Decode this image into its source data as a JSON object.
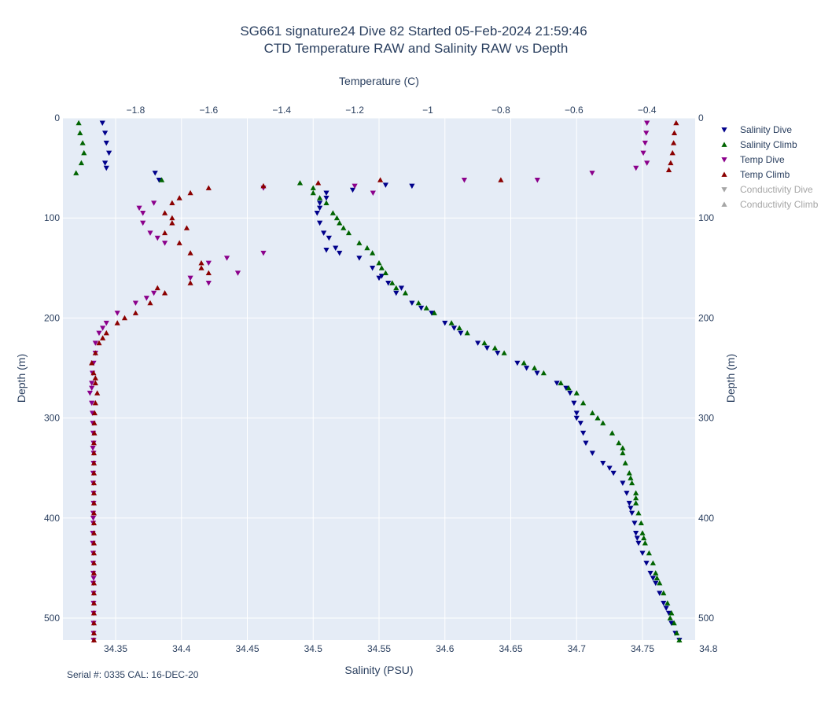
{
  "chart_data": {
    "type": "scatter",
    "title": "SG661 signature24 Dive 82 Started 05-Feb-2024 21:59:46",
    "subtitle": "CTD Temperature RAW and Salinity RAW vs Depth",
    "x_bottom": {
      "label": "Salinity (PSU)",
      "range": [
        34.31,
        34.79
      ],
      "ticks": [
        34.35,
        34.4,
        34.45,
        34.5,
        34.55,
        34.6,
        34.65,
        34.7,
        34.75,
        34.8
      ]
    },
    "x_top": {
      "label": "Temperature (C)",
      "range": [
        -1.999,
        -0.268
      ],
      "ticks": [
        -1.8,
        -1.6,
        -1.4,
        -1.2,
        -1.0,
        -0.8,
        -0.6,
        -0.4
      ],
      "tick_labels": [
        "−1.8",
        "−1.6",
        "−1.4",
        "−1.2",
        "−1",
        "−0.8",
        "−0.6",
        "−0.4"
      ]
    },
    "y": {
      "label": "Depth (m)",
      "range": [
        0,
        522
      ],
      "reversed": true,
      "ticks": [
        0,
        100,
        200,
        300,
        400,
        500
      ]
    },
    "y_right": {
      "label": "Depth (m)",
      "ticks": [
        0,
        100,
        200,
        300,
        400,
        500
      ],
      "tick_labels": [
        "0",
        "100",
        "200",
        "300",
        "400",
        "500"
      ]
    },
    "grid": true,
    "legend_position": "right",
    "series": [
      {
        "name": "Salinity Dive",
        "axis": "salinity",
        "marker": "triangle-down",
        "color": "#00008b",
        "points": [
          [
            34.34,
            5
          ],
          [
            34.342,
            15
          ],
          [
            34.343,
            25
          ],
          [
            34.345,
            35
          ],
          [
            34.342,
            45
          ],
          [
            34.343,
            50
          ],
          [
            34.38,
            55
          ],
          [
            34.383,
            62
          ],
          [
            34.51,
            75
          ],
          [
            34.505,
            85
          ],
          [
            34.503,
            95
          ],
          [
            34.505,
            105
          ],
          [
            34.508,
            115
          ],
          [
            34.512,
            120
          ],
          [
            34.51,
            132
          ],
          [
            34.52,
            135
          ],
          [
            34.535,
            140
          ],
          [
            34.545,
            150
          ],
          [
            34.55,
            160
          ],
          [
            34.557,
            165
          ],
          [
            34.563,
            175
          ],
          [
            34.575,
            185
          ],
          [
            34.59,
            195
          ],
          [
            34.6,
            205
          ],
          [
            34.612,
            215
          ],
          [
            34.625,
            225
          ],
          [
            34.64,
            235
          ],
          [
            34.655,
            245
          ],
          [
            34.67,
            255
          ],
          [
            34.685,
            265
          ],
          [
            34.695,
            275
          ],
          [
            34.698,
            285
          ],
          [
            34.7,
            295
          ],
          [
            34.703,
            305
          ],
          [
            34.705,
            315
          ],
          [
            34.707,
            325
          ],
          [
            34.712,
            335
          ],
          [
            34.72,
            345
          ],
          [
            34.728,
            355
          ],
          [
            34.735,
            365
          ],
          [
            34.738,
            375
          ],
          [
            34.74,
            385
          ],
          [
            34.742,
            395
          ],
          [
            34.744,
            405
          ],
          [
            34.745,
            415
          ],
          [
            34.747,
            425
          ],
          [
            34.75,
            435
          ],
          [
            34.753,
            445
          ],
          [
            34.756,
            455
          ],
          [
            34.76,
            465
          ],
          [
            34.763,
            475
          ],
          [
            34.766,
            485
          ],
          [
            34.77,
            495
          ],
          [
            34.772,
            505
          ],
          [
            34.775,
            515
          ],
          [
            34.778,
            522
          ],
          [
            34.555,
            67
          ],
          [
            34.575,
            68
          ],
          [
            34.53,
            72
          ],
          [
            34.51,
            80
          ],
          [
            34.505,
            90
          ],
          [
            34.517,
            130
          ],
          [
            34.552,
            158
          ],
          [
            34.567,
            170
          ],
          [
            34.582,
            190
          ],
          [
            34.607,
            210
          ],
          [
            34.632,
            230
          ],
          [
            34.662,
            250
          ],
          [
            34.692,
            270
          ],
          [
            34.7,
            300
          ],
          [
            34.725,
            350
          ],
          [
            34.741,
            390
          ],
          [
            34.746,
            420
          ],
          [
            34.758,
            460
          ],
          [
            34.768,
            490
          ]
        ]
      },
      {
        "name": "Salinity Climb",
        "axis": "salinity",
        "marker": "triangle-up",
        "color": "#006400",
        "points": [
          [
            34.322,
            5
          ],
          [
            34.323,
            15
          ],
          [
            34.325,
            25
          ],
          [
            34.326,
            35
          ],
          [
            34.324,
            45
          ],
          [
            34.32,
            55
          ],
          [
            34.385,
            62
          ],
          [
            34.5,
            75
          ],
          [
            34.51,
            85
          ],
          [
            34.515,
            95
          ],
          [
            34.52,
            105
          ],
          [
            34.527,
            115
          ],
          [
            34.535,
            125
          ],
          [
            34.545,
            135
          ],
          [
            34.55,
            145
          ],
          [
            34.555,
            155
          ],
          [
            34.56,
            165
          ],
          [
            34.57,
            175
          ],
          [
            34.58,
            185
          ],
          [
            34.592,
            195
          ],
          [
            34.605,
            205
          ],
          [
            34.617,
            215
          ],
          [
            34.63,
            225
          ],
          [
            34.645,
            235
          ],
          [
            34.66,
            245
          ],
          [
            34.675,
            255
          ],
          [
            34.688,
            265
          ],
          [
            34.7,
            275
          ],
          [
            34.705,
            285
          ],
          [
            34.712,
            295
          ],
          [
            34.72,
            305
          ],
          [
            34.727,
            315
          ],
          [
            34.732,
            325
          ],
          [
            34.735,
            335
          ],
          [
            34.737,
            345
          ],
          [
            34.74,
            355
          ],
          [
            34.742,
            365
          ],
          [
            34.745,
            375
          ],
          [
            34.745,
            385
          ],
          [
            34.747,
            395
          ],
          [
            34.749,
            405
          ],
          [
            34.75,
            415
          ],
          [
            34.752,
            425
          ],
          [
            34.755,
            435
          ],
          [
            34.758,
            445
          ],
          [
            34.76,
            455
          ],
          [
            34.763,
            465
          ],
          [
            34.766,
            475
          ],
          [
            34.769,
            485
          ],
          [
            34.772,
            495
          ],
          [
            34.774,
            505
          ],
          [
            34.776,
            515
          ],
          [
            34.778,
            522
          ],
          [
            34.49,
            65
          ],
          [
            34.5,
            70
          ],
          [
            34.505,
            80
          ],
          [
            34.518,
            100
          ],
          [
            34.523,
            110
          ],
          [
            34.541,
            130
          ],
          [
            34.552,
            150
          ],
          [
            34.563,
            170
          ],
          [
            34.586,
            190
          ],
          [
            34.611,
            210
          ],
          [
            34.638,
            230
          ],
          [
            34.668,
            250
          ],
          [
            34.694,
            270
          ],
          [
            34.716,
            300
          ],
          [
            34.735,
            330
          ],
          [
            34.741,
            360
          ],
          [
            34.745,
            380
          ],
          [
            34.751,
            420
          ],
          [
            34.761,
            460
          ],
          [
            34.771,
            500
          ]
        ]
      },
      {
        "name": "Temp Dive",
        "axis": "temperature",
        "marker": "triangle-down",
        "color": "#8b008b",
        "points": [
          [
            -0.4,
            5
          ],
          [
            -0.402,
            15
          ],
          [
            -0.405,
            25
          ],
          [
            -0.41,
            35
          ],
          [
            -0.4,
            45
          ],
          [
            -0.43,
            50
          ],
          [
            -0.55,
            55
          ],
          [
            -0.7,
            62
          ],
          [
            -1.45,
            70
          ],
          [
            -1.75,
            85
          ],
          [
            -1.78,
            95
          ],
          [
            -1.78,
            105
          ],
          [
            -1.76,
            115
          ],
          [
            -1.72,
            125
          ],
          [
            -1.45,
            135
          ],
          [
            -1.6,
            145
          ],
          [
            -1.52,
            155
          ],
          [
            -1.6,
            165
          ],
          [
            -1.75,
            175
          ],
          [
            -1.8,
            185
          ],
          [
            -1.85,
            195
          ],
          [
            -1.88,
            205
          ],
          [
            -1.9,
            215
          ],
          [
            -1.91,
            225
          ],
          [
            -1.91,
            235
          ],
          [
            -1.915,
            245
          ],
          [
            -1.918,
            255
          ],
          [
            -1.92,
            265
          ],
          [
            -1.925,
            275
          ],
          [
            -1.92,
            285
          ],
          [
            -1.918,
            295
          ],
          [
            -1.917,
            305
          ],
          [
            -1.916,
            315
          ],
          [
            -1.915,
            325
          ],
          [
            -1.915,
            335
          ],
          [
            -1.915,
            345
          ],
          [
            -1.916,
            355
          ],
          [
            -1.916,
            365
          ],
          [
            -1.915,
            375
          ],
          [
            -1.915,
            385
          ],
          [
            -1.916,
            395
          ],
          [
            -1.916,
            405
          ],
          [
            -1.917,
            415
          ],
          [
            -1.917,
            425
          ],
          [
            -1.916,
            435
          ],
          [
            -1.916,
            445
          ],
          [
            -1.916,
            455
          ],
          [
            -1.916,
            465
          ],
          [
            -1.915,
            475
          ],
          [
            -1.915,
            485
          ],
          [
            -1.915,
            495
          ],
          [
            -1.915,
            505
          ],
          [
            -1.915,
            515
          ],
          [
            -1.915,
            522
          ],
          [
            -1.2,
            68
          ],
          [
            -1.15,
            75
          ],
          [
            -0.9,
            62
          ],
          [
            -1.79,
            90
          ],
          [
            -1.74,
            120
          ],
          [
            -1.55,
            140
          ],
          [
            -1.65,
            160
          ],
          [
            -1.77,
            180
          ],
          [
            -1.89,
            210
          ],
          [
            -1.92,
            270
          ],
          [
            -1.917,
            330
          ],
          [
            -1.916,
            400
          ],
          [
            -1.915,
            460
          ]
        ]
      },
      {
        "name": "Temp Climb",
        "axis": "temperature",
        "marker": "triangle-up",
        "color": "#8b0000",
        "points": [
          [
            -0.32,
            5
          ],
          [
            -0.325,
            15
          ],
          [
            -0.327,
            25
          ],
          [
            -0.33,
            35
          ],
          [
            -0.335,
            45
          ],
          [
            -0.34,
            52
          ],
          [
            -0.8,
            62
          ],
          [
            -1.45,
            68
          ],
          [
            -1.65,
            75
          ],
          [
            -1.7,
            85
          ],
          [
            -1.72,
            95
          ],
          [
            -1.7,
            105
          ],
          [
            -1.72,
            115
          ],
          [
            -1.68,
            125
          ],
          [
            -1.65,
            135
          ],
          [
            -1.62,
            145
          ],
          [
            -1.6,
            155
          ],
          [
            -1.65,
            165
          ],
          [
            -1.72,
            175
          ],
          [
            -1.76,
            185
          ],
          [
            -1.8,
            195
          ],
          [
            -1.85,
            205
          ],
          [
            -1.88,
            215
          ],
          [
            -1.9,
            225
          ],
          [
            -1.91,
            235
          ],
          [
            -1.92,
            245
          ],
          [
            -1.915,
            255
          ],
          [
            -1.91,
            265
          ],
          [
            -1.905,
            275
          ],
          [
            -1.91,
            285
          ],
          [
            -1.912,
            295
          ],
          [
            -1.913,
            305
          ],
          [
            -1.913,
            315
          ],
          [
            -1.914,
            325
          ],
          [
            -1.914,
            335
          ],
          [
            -1.914,
            345
          ],
          [
            -1.914,
            355
          ],
          [
            -1.914,
            365
          ],
          [
            -1.914,
            375
          ],
          [
            -1.914,
            385
          ],
          [
            -1.914,
            395
          ],
          [
            -1.914,
            405
          ],
          [
            -1.914,
            415
          ],
          [
            -1.914,
            425
          ],
          [
            -1.914,
            435
          ],
          [
            -1.914,
            445
          ],
          [
            -1.914,
            455
          ],
          [
            -1.914,
            465
          ],
          [
            -1.914,
            475
          ],
          [
            -1.914,
            485
          ],
          [
            -1.914,
            495
          ],
          [
            -1.914,
            505
          ],
          [
            -1.914,
            515
          ],
          [
            -1.914,
            522
          ],
          [
            -1.13,
            62
          ],
          [
            -1.3,
            65
          ],
          [
            -1.6,
            70
          ],
          [
            -1.68,
            80
          ],
          [
            -1.7,
            100
          ],
          [
            -1.66,
            110
          ],
          [
            -1.62,
            150
          ],
          [
            -1.74,
            170
          ],
          [
            -1.83,
            200
          ],
          [
            -1.89,
            220
          ],
          [
            -1.91,
            260
          ]
        ]
      },
      {
        "name": "Conductivity Dive",
        "axis": "none",
        "marker": "triangle-down",
        "color": "#b0b0b0",
        "visible": false,
        "points": []
      },
      {
        "name": "Conductivity Climb",
        "axis": "none",
        "marker": "triangle-up",
        "color": "#b0b0b0",
        "visible": false,
        "points": []
      }
    ]
  },
  "footnote": "Serial #: 0335  CAL: 16-DEC-20",
  "colors": {
    "plot_bg": "#e5ecf6",
    "grid": "#ffffff",
    "text": "#2a3f5f",
    "legend_hidden": "#a6a6a6"
  }
}
